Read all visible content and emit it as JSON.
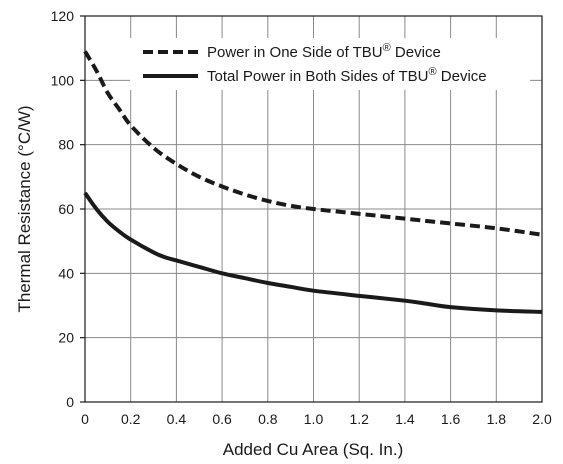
{
  "chart_data": {
    "type": "line",
    "xlabel": "Added Cu Area (Sq. In.)",
    "ylabel": "Thermal Resistance (°C/W)",
    "xlim": [
      0,
      2.0
    ],
    "ylim": [
      0,
      120
    ],
    "x_ticks": [
      "0",
      "0.2",
      "0.4",
      "0.6",
      "0.8",
      "1.0",
      "1.2",
      "1.4",
      "1.6",
      "1.8",
      "2.0"
    ],
    "y_ticks": [
      "0",
      "20",
      "40",
      "60",
      "80",
      "100",
      "120"
    ],
    "grid": true,
    "legend_position": "top-right",
    "series": [
      {
        "name": "Power in One Side of TBU® Device",
        "style": "dashed",
        "color": "#1a1a1a",
        "x": [
          0,
          0.05,
          0.1,
          0.15,
          0.2,
          0.3,
          0.4,
          0.5,
          0.6,
          0.7,
          0.8,
          0.9,
          1.0,
          1.2,
          1.4,
          1.6,
          1.8,
          2.0
        ],
        "y": [
          109,
          103,
          96,
          91,
          86,
          79,
          74,
          70,
          67,
          64.5,
          62.5,
          61,
          60,
          58.5,
          57,
          55.5,
          54,
          52
        ]
      },
      {
        "name": "Total Power in Both Sides of TBU® Device",
        "style": "solid",
        "color": "#1a1a1a",
        "x": [
          0,
          0.05,
          0.1,
          0.15,
          0.2,
          0.3,
          0.35,
          0.4,
          0.5,
          0.6,
          0.7,
          0.8,
          0.9,
          1.0,
          1.2,
          1.4,
          1.5,
          1.6,
          1.8,
          2.0
        ],
        "y": [
          65,
          60,
          56,
          53,
          50.5,
          46.5,
          45,
          44,
          42,
          40,
          38.5,
          37,
          35.8,
          34.6,
          33,
          31.5,
          30.5,
          29.5,
          28.5,
          28
        ]
      }
    ]
  }
}
